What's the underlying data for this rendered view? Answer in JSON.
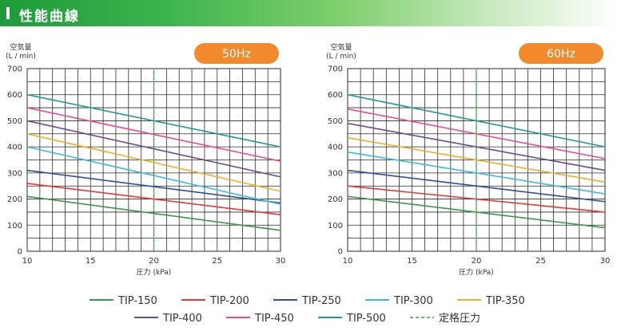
{
  "header": {
    "title": "性能曲線"
  },
  "chart_data": [
    {
      "type": "line",
      "badge": "50Hz",
      "ylabel_line1": "空気量",
      "ylabel_line2": "(L / min)",
      "xlabel": "圧力 (kPa)",
      "xlim": [
        10,
        30
      ],
      "ylim": [
        0,
        700
      ],
      "xticks": [
        10,
        15,
        20,
        25,
        30
      ],
      "yticks": [
        0,
        100,
        200,
        300,
        400,
        500,
        600,
        700
      ],
      "grid": true,
      "rated_pressure": 20,
      "series": [
        {
          "name": "TIP-150",
          "x": [
            10,
            30
          ],
          "y": [
            210,
            80
          ]
        },
        {
          "name": "TIP-200",
          "x": [
            10,
            30
          ],
          "y": [
            260,
            140
          ]
        },
        {
          "name": "TIP-250",
          "x": [
            10,
            30
          ],
          "y": [
            310,
            185
          ]
        },
        {
          "name": "TIP-300",
          "x": [
            10,
            30
          ],
          "y": [
            400,
            180
          ]
        },
        {
          "name": "TIP-350",
          "x": [
            10,
            30
          ],
          "y": [
            450,
            230
          ]
        },
        {
          "name": "TIP-400",
          "x": [
            10,
            30
          ],
          "y": [
            500,
            285
          ]
        },
        {
          "name": "TIP-450",
          "x": [
            10,
            30
          ],
          "y": [
            550,
            345
          ]
        },
        {
          "name": "TIP-500",
          "x": [
            10,
            30
          ],
          "y": [
            600,
            400
          ]
        }
      ]
    },
    {
      "type": "line",
      "badge": "60Hz",
      "ylabel_line1": "空気量",
      "ylabel_line2": "(L / min)",
      "xlabel": "圧力 (kPa)",
      "xlim": [
        10,
        30
      ],
      "ylim": [
        0,
        700
      ],
      "xticks": [
        10,
        15,
        20,
        25,
        30
      ],
      "yticks": [
        0,
        100,
        200,
        300,
        400,
        500,
        600,
        700
      ],
      "grid": true,
      "rated_pressure": 20,
      "series": [
        {
          "name": "TIP-150",
          "x": [
            10,
            30
          ],
          "y": [
            210,
            90
          ]
        },
        {
          "name": "TIP-200",
          "x": [
            10,
            30
          ],
          "y": [
            250,
            150
          ]
        },
        {
          "name": "TIP-250",
          "x": [
            10,
            30
          ],
          "y": [
            310,
            190
          ]
        },
        {
          "name": "TIP-300",
          "x": [
            10,
            30
          ],
          "y": [
            380,
            220
          ]
        },
        {
          "name": "TIP-350",
          "x": [
            10,
            30
          ],
          "y": [
            435,
            265
          ]
        },
        {
          "name": "TIP-400",
          "x": [
            10,
            30
          ],
          "y": [
            490,
            310
          ]
        },
        {
          "name": "TIP-450",
          "x": [
            10,
            30
          ],
          "y": [
            545,
            355
          ]
        },
        {
          "name": "TIP-500",
          "x": [
            10,
            30
          ],
          "y": [
            600,
            400
          ]
        }
      ]
    }
  ],
  "legend": {
    "placement": "bottom",
    "items": [
      {
        "name": "TIP-150",
        "color": "#3a9a48",
        "dashed": false
      },
      {
        "name": "TIP-200",
        "color": "#e53a35",
        "dashed": false
      },
      {
        "name": "TIP-250",
        "color": "#2f4fa3",
        "dashed": false
      },
      {
        "name": "TIP-300",
        "color": "#3fb8e4",
        "dashed": false
      },
      {
        "name": "TIP-350",
        "color": "#f0ae2c",
        "dashed": false
      },
      {
        "name": "TIP-400",
        "color": "#6a4a9a",
        "dashed": false
      },
      {
        "name": "TIP-450",
        "color": "#e84d93",
        "dashed": false
      },
      {
        "name": "TIP-500",
        "color": "#1f9a93",
        "dashed": false
      },
      {
        "name": "定格圧力",
        "color": "#5dc15e",
        "dashed": true
      }
    ]
  },
  "colors": {
    "grid": "#2b2b2b",
    "badge": "#f08a2c",
    "rated_line": "#5dc15e"
  }
}
